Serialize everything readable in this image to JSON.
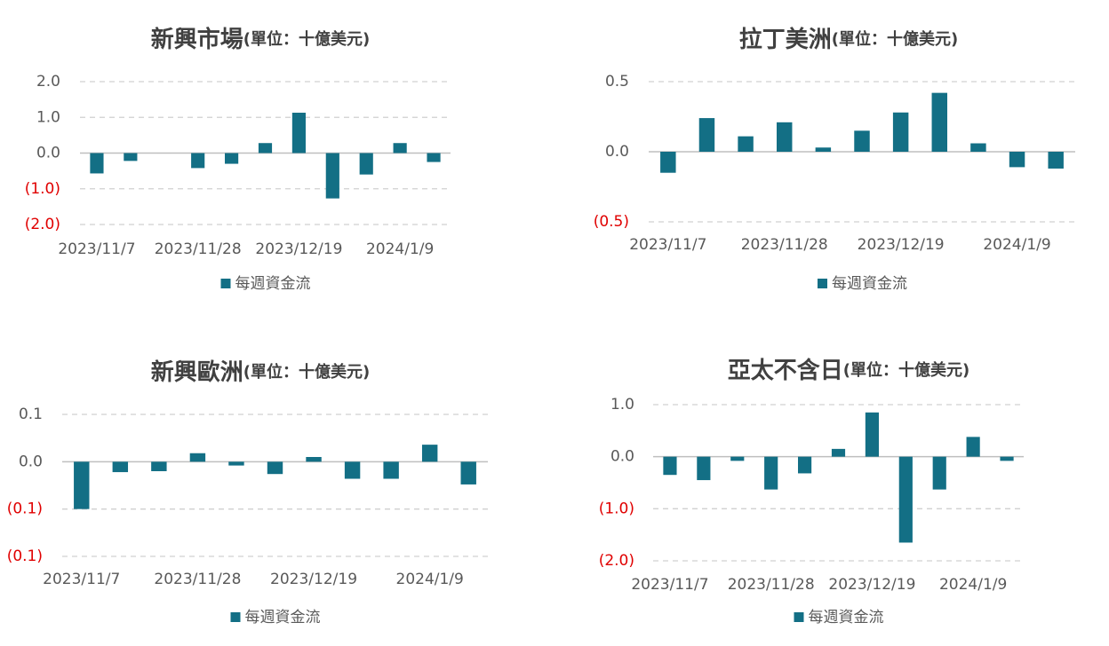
{
  "chart_data": [
    {
      "type": "bar",
      "title": "新興市場",
      "subtitle": "(單位：十億美元)",
      "categories": [
        "2023/11/7",
        null,
        null,
        "2023/11/28",
        null,
        null,
        "2023/12/19",
        null,
        null,
        "2024/1/9",
        null
      ],
      "series": [
        {
          "name": "每週資金流",
          "color": "#136f85",
          "values": [
            -0.57,
            -0.22,
            0,
            -0.42,
            -0.3,
            0.28,
            1.13,
            -1.27,
            -0.6,
            0.28,
            -0.25
          ]
        }
      ],
      "ylim": [
        -2,
        2
      ],
      "yticks": [
        {
          "value": 2,
          "label": "2.0"
        },
        {
          "value": 1,
          "label": "1.0"
        },
        {
          "value": 0,
          "label": "0.0"
        },
        {
          "value": -1,
          "label": "(1.0)"
        },
        {
          "value": -2,
          "label": "(2.0)"
        }
      ],
      "grid": true,
      "negative_tick_color": "#e00000",
      "legend": "bottom"
    },
    {
      "type": "bar",
      "title": "拉丁美洲",
      "subtitle": "(單位：十億美元)",
      "categories": [
        "2023/11/7",
        null,
        null,
        "2023/11/28",
        null,
        null,
        "2023/12/19",
        null,
        null,
        "2024/1/9",
        null
      ],
      "series": [
        {
          "name": "每週資金流",
          "color": "#136f85",
          "values": [
            -0.15,
            0.24,
            0.11,
            0.21,
            0.03,
            0.15,
            0.28,
            0.42,
            0.06,
            -0.11,
            -0.12
          ]
        }
      ],
      "ylim": [
        -0.5,
        0.5
      ],
      "yticks": [
        0.5,
        {
          "value": 0,
          "label": "0.0"
        },
        {
          "value": -0.5,
          "label": "(0.5)"
        }
      ],
      "grid": true,
      "negative_tick_color": "#e00000",
      "legend": "bottom"
    },
    {
      "type": "bar",
      "title": "新興歐洲",
      "subtitle": "(單位：十億美元)",
      "categories": [
        "2023/11/7",
        null,
        null,
        "2023/11/28",
        null,
        null,
        "2023/12/19",
        null,
        null,
        "2024/1/9",
        null
      ],
      "series": [
        {
          "name": "每週資金流",
          "color": "#136f85",
          "values": [
            -0.05,
            -0.011,
            -0.01,
            0.009,
            -0.004,
            -0.013,
            0.005,
            -0.018,
            -0.018,
            0.018,
            -0.024
          ]
        }
      ],
      "ylim": [
        -0.1,
        0.05
      ],
      "yticks": [
        {
          "value": 0.05,
          "label": "0.1"
        },
        {
          "value": 0,
          "label": "0.0"
        },
        {
          "value": -0.05,
          "label": "(0.1)"
        },
        {
          "value": -0.1,
          "label": "(0.1)"
        }
      ],
      "grid": true,
      "negative_tick_color": "#e00000",
      "legend": "bottom"
    },
    {
      "type": "bar",
      "title": "亞太不含日",
      "subtitle": "(單位：十億美元)",
      "categories": [
        "2023/11/7",
        null,
        null,
        "2023/11/28",
        null,
        null,
        "2023/12/19",
        null,
        null,
        "2024/1/9",
        null
      ],
      "series": [
        {
          "name": "每週資金流",
          "color": "#136f85",
          "values": [
            -0.35,
            -0.45,
            -0.08,
            -0.63,
            -0.32,
            0.15,
            0.85,
            -1.65,
            -0.63,
            0.38,
            -0.08
          ]
        }
      ],
      "ylim": [
        -2,
        1
      ],
      "yticks": [
        {
          "value": 1,
          "label": "1.0"
        },
        {
          "value": 0,
          "label": "0.0"
        },
        {
          "value": -1,
          "label": "(1.0)"
        },
        {
          "value": -2,
          "label": "(2.0)"
        }
      ],
      "grid": true,
      "negative_tick_color": "#e00000",
      "legend": "bottom"
    }
  ]
}
